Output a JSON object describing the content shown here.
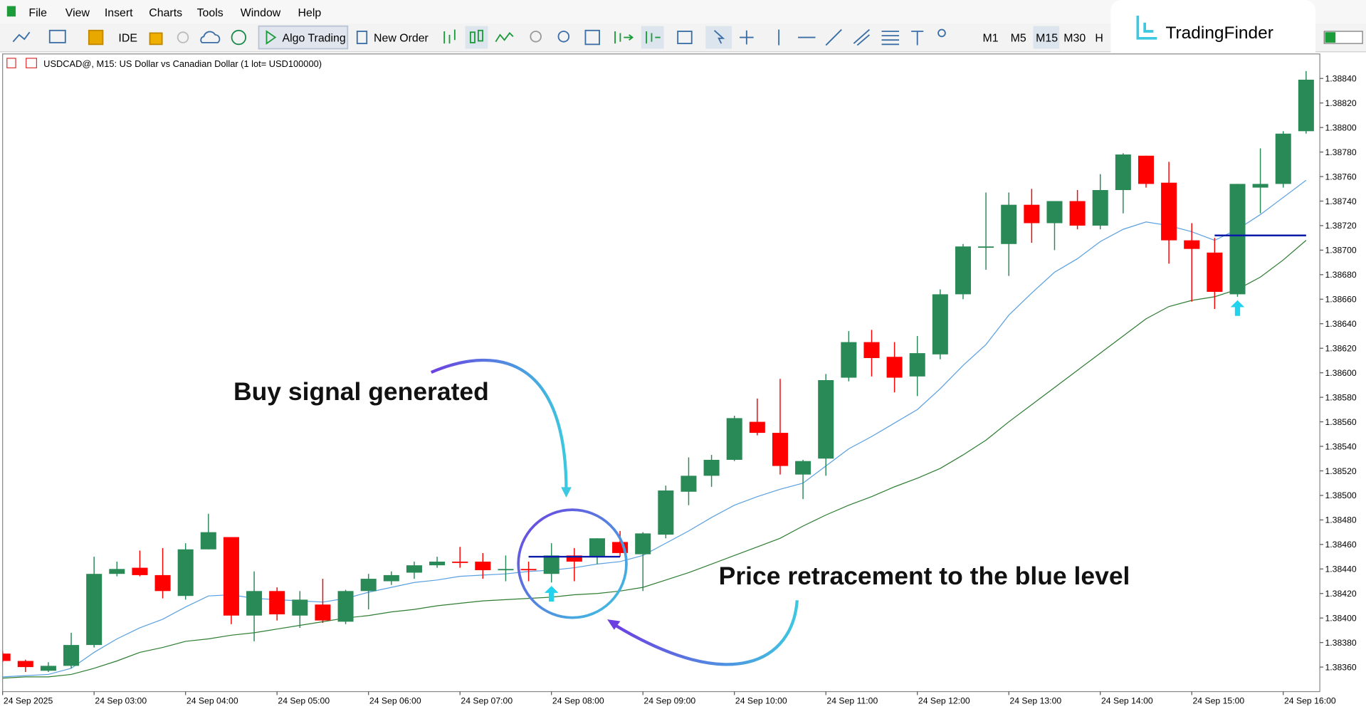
{
  "menu": [
    "File",
    "View",
    "Insert",
    "Charts",
    "Tools",
    "Window",
    "Help"
  ],
  "toolbar": {
    "ide": "IDE",
    "algo": "Algo Trading",
    "order": "New Order",
    "timeframes": [
      "M1",
      "M5",
      "M15",
      "M30",
      "H"
    ]
  },
  "logo": "TradingFinder",
  "chart_data": {
    "type": "candlestick",
    "title": "USDCAD@, M15:  US Dollar vs Canadian Dollar  (1 lot= USD100000)",
    "categories": [
      "24 Sep 2025",
      null,
      null,
      null,
      "24 Sep 03:00",
      null,
      null,
      null,
      "24 Sep 04:00",
      null,
      null,
      null,
      "24 Sep 05:00",
      null,
      null,
      null,
      "24 Sep 06:00",
      null,
      null,
      null,
      "24 Sep 07:00",
      null,
      null,
      null,
      "24 Sep 08:00",
      null,
      null,
      null,
      "24 Sep 09:00",
      null,
      null,
      null,
      "24 Sep 10:00",
      null,
      null,
      null,
      "24 Sep 11:00",
      null,
      null,
      null,
      "24 Sep 12:00",
      null,
      null,
      null,
      "24 Sep 13:00",
      null,
      null,
      null,
      "24 Sep 14:00",
      null,
      null,
      null,
      "24 Sep 15:00",
      null,
      null,
      null,
      "24 Sep 16:00",
      null
    ],
    "open": [
      1.38371,
      1.38365,
      1.38357,
      1.38361,
      1.38378,
      1.38436,
      1.38441,
      1.38435,
      1.38418,
      1.38456,
      1.38466,
      1.38402,
      1.38422,
      1.38402,
      1.38411,
      1.38397,
      1.38422,
      1.3843,
      1.38437,
      1.38443,
      1.38446,
      1.38446,
      1.38439,
      1.3844,
      1.38436,
      1.38451,
      1.3845,
      1.38462,
      1.38452,
      1.38468,
      1.38503,
      1.38516,
      1.38529,
      1.3856,
      1.38551,
      1.38517,
      1.3853,
      1.38596,
      1.38625,
      1.38613,
      1.38597,
      1.38615,
      1.38664,
      1.38702,
      1.38705,
      1.38737,
      1.38722,
      1.3874,
      1.3872,
      1.38749,
      1.38777,
      1.38755,
      1.38708,
      1.38698,
      1.38664,
      1.38751,
      1.38754,
      1.38797
    ],
    "high": [
      1.38373,
      1.38366,
      1.38364,
      1.38388,
      1.3845,
      1.38446,
      1.38455,
      1.38457,
      1.38461,
      1.38485,
      1.38466,
      1.38438,
      1.38425,
      1.38422,
      1.38432,
      1.38423,
      1.38436,
      1.38438,
      1.38446,
      1.3845,
      1.38458,
      1.38453,
      1.38451,
      1.38446,
      1.38461,
      1.38457,
      1.38465,
      1.38471,
      1.3847,
      1.38508,
      1.38531,
      1.38533,
      1.38565,
      1.38579,
      1.38595,
      1.38529,
      1.38599,
      1.38634,
      1.38635,
      1.38625,
      1.3863,
      1.38668,
      1.38705,
      1.38747,
      1.38747,
      1.3875,
      1.3874,
      1.38749,
      1.38762,
      1.38779,
      1.38777,
      1.38772,
      1.38722,
      1.3871,
      1.38754,
      1.38783,
      1.38797,
      1.38846
    ],
    "low": [
      1.38364,
      1.38356,
      1.38356,
      1.38359,
      1.38376,
      1.38434,
      1.38434,
      1.38416,
      1.38415,
      1.38456,
      1.38395,
      1.38381,
      1.38398,
      1.38392,
      1.38396,
      1.38395,
      1.38407,
      1.38427,
      1.38432,
      1.38441,
      1.38441,
      1.38432,
      1.3843,
      1.3843,
      1.38429,
      1.3843,
      1.38444,
      1.3845,
      1.38422,
      1.38465,
      1.38492,
      1.38507,
      1.38528,
      1.38549,
      1.38517,
      1.38497,
      1.38516,
      1.38593,
      1.38597,
      1.38584,
      1.38581,
      1.38611,
      1.3866,
      1.38684,
      1.38679,
      1.38706,
      1.387,
      1.38717,
      1.38717,
      1.3873,
      1.38751,
      1.38689,
      1.38658,
      1.38652,
      1.38662,
      1.3873,
      1.38751,
      1.38795
    ],
    "close": [
      1.38365,
      1.3836,
      1.38361,
      1.38378,
      1.38436,
      1.3844,
      1.38435,
      1.38422,
      1.38456,
      1.3847,
      1.38402,
      1.38422,
      1.38403,
      1.38415,
      1.38398,
      1.38422,
      1.38432,
      1.38435,
      1.38443,
      1.38446,
      1.38445,
      1.38439,
      1.3844,
      1.38439,
      1.38451,
      1.38446,
      1.38465,
      1.38453,
      1.38469,
      1.38504,
      1.38516,
      1.38529,
      1.38563,
      1.38551,
      1.38524,
      1.38528,
      1.38594,
      1.38625,
      1.38612,
      1.38596,
      1.38616,
      1.38664,
      1.38703,
      1.38703,
      1.38737,
      1.38722,
      1.3874,
      1.3872,
      1.38749,
      1.38778,
      1.38754,
      1.38708,
      1.38701,
      1.38666,
      1.38754,
      1.38754,
      1.38795,
      1.38839
    ],
    "up_color": "#2a8a57",
    "down_color": "#ff0000",
    "lines": [
      {
        "color": "#5aa0e0",
        "values": [
          1.38352,
          1.38353,
          1.38354,
          1.38359,
          1.38372,
          1.38383,
          1.38392,
          1.38399,
          1.38409,
          1.38418,
          1.38419,
          1.38416,
          1.38415,
          1.38414,
          1.38413,
          1.38416,
          1.38421,
          1.38425,
          1.38429,
          1.38431,
          1.38434,
          1.38435,
          1.38436,
          1.38438,
          1.38439,
          1.38441,
          1.38444,
          1.38446,
          1.38451,
          1.38461,
          1.38471,
          1.38482,
          1.38492,
          1.38499,
          1.38505,
          1.3851,
          1.38524,
          1.38538,
          1.38548,
          1.38559,
          1.3857,
          1.38587,
          1.38606,
          1.38623,
          1.38647,
          1.38665,
          1.38682,
          1.38693,
          1.38707,
          1.38717,
          1.38723,
          1.3872,
          1.38715,
          1.38708,
          1.38717,
          1.38729,
          1.38743,
          1.38757
        ]
      },
      {
        "color": "#2e7d32",
        "values": [
          1.38351,
          1.38352,
          1.38352,
          1.38354,
          1.38359,
          1.38365,
          1.38372,
          1.38376,
          1.38381,
          1.38383,
          1.38386,
          1.38388,
          1.38391,
          1.38394,
          1.38397,
          1.384,
          1.38402,
          1.38405,
          1.38407,
          1.3841,
          1.38412,
          1.38414,
          1.38415,
          1.38416,
          1.38417,
          1.38419,
          1.3842,
          1.38422,
          1.38425,
          1.38431,
          1.38437,
          1.38444,
          1.38451,
          1.38458,
          1.38465,
          1.38475,
          1.38484,
          1.38492,
          1.38499,
          1.38507,
          1.38514,
          1.38522,
          1.38533,
          1.38545,
          1.3856,
          1.38574,
          1.38588,
          1.38602,
          1.38616,
          1.3863,
          1.38644,
          1.38654,
          1.38659,
          1.38662,
          1.38668,
          1.38678,
          1.38692,
          1.38708
        ]
      }
    ],
    "levels": [
      {
        "value": 1.3845,
        "from": 23,
        "to": 27
      },
      {
        "value": 1.38712,
        "from": 53,
        "to": 57
      }
    ],
    "level_color": "#0a1aa8",
    "signals": [
      24,
      54
    ],
    "signal_color": "#22d3ee",
    "ylim": [
      1.3834,
      1.3886
    ],
    "yticks": [
      {
        "value": 1.3836,
        "label": "1.38360"
      },
      {
        "value": 1.3838,
        "label": "1.38380"
      },
      {
        "value": 1.384,
        "label": "1.38400"
      },
      {
        "value": 1.3842,
        "label": "1.38420"
      },
      {
        "value": 1.3844,
        "label": "1.38440"
      },
      {
        "value": 1.3846,
        "label": "1.38460"
      },
      {
        "value": 1.3848,
        "label": "1.38480"
      },
      {
        "value": 1.385,
        "label": "1.38500"
      },
      {
        "value": 1.3852,
        "label": "1.38520"
      },
      {
        "value": 1.3854,
        "label": "1.38540"
      },
      {
        "value": 1.3856,
        "label": "1.38560"
      },
      {
        "value": 1.3858,
        "label": "1.38580"
      },
      {
        "value": 1.386,
        "label": "1.38600"
      },
      {
        "value": 1.3862,
        "label": "1.38620"
      },
      {
        "value": 1.3864,
        "label": "1.38640"
      },
      {
        "value": 1.3866,
        "label": "1.38660"
      },
      {
        "value": 1.3868,
        "label": "1.38680"
      },
      {
        "value": 1.387,
        "label": "1.38700"
      },
      {
        "value": 1.3872,
        "label": "1.38720"
      },
      {
        "value": 1.3874,
        "label": "1.38740"
      },
      {
        "value": 1.3876,
        "label": "1.38760"
      },
      {
        "value": 1.3878,
        "label": "1.38780"
      },
      {
        "value": 1.388,
        "label": "1.38800"
      },
      {
        "value": 1.3882,
        "label": "1.38820"
      },
      {
        "value": 1.3884,
        "label": "1.38840"
      }
    ],
    "annotations": [
      "Buy signal generated",
      "Price retracement to the blue level"
    ]
  }
}
